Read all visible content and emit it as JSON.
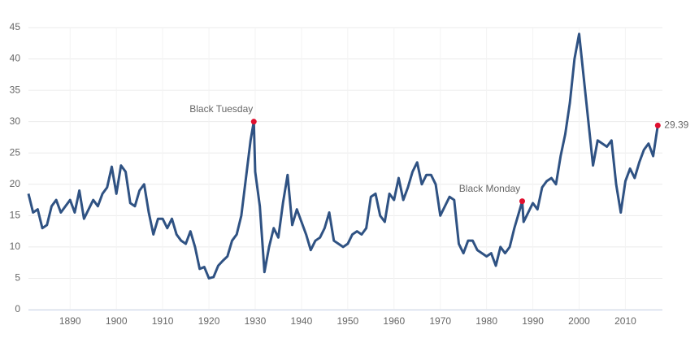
{
  "chart_data": {
    "type": "line",
    "x": [
      1881,
      1882,
      1883,
      1884,
      1885,
      1886,
      1887,
      1888,
      1889,
      1890,
      1891,
      1892,
      1893,
      1894,
      1895,
      1896,
      1897,
      1898,
      1899,
      1900,
      1901,
      1902,
      1903,
      1904,
      1905,
      1906,
      1907,
      1908,
      1909,
      1910,
      1911,
      1912,
      1913,
      1914,
      1915,
      1916,
      1917,
      1918,
      1919,
      1920,
      1921,
      1922,
      1923,
      1924,
      1925,
      1926,
      1927,
      1928,
      1929,
      1929.7,
      1930,
      1931,
      1932,
      1933,
      1934,
      1935,
      1936,
      1937,
      1938,
      1939,
      1940,
      1941,
      1942,
      1943,
      1944,
      1945,
      1946,
      1947,
      1948,
      1949,
      1950,
      1951,
      1952,
      1953,
      1954,
      1955,
      1956,
      1957,
      1958,
      1959,
      1960,
      1961,
      1962,
      1963,
      1964,
      1965,
      1966,
      1967,
      1968,
      1969,
      1970,
      1971,
      1972,
      1973,
      1974,
      1975,
      1976,
      1977,
      1978,
      1979,
      1980,
      1981,
      1982,
      1983,
      1984,
      1985,
      1986,
      1987,
      1987.7,
      1988,
      1989,
      1990,
      1991,
      1992,
      1993,
      1994,
      1995,
      1996,
      1997,
      1998,
      1999,
      2000,
      2001,
      2002,
      2003,
      2004,
      2005,
      2006,
      2007,
      2008,
      2009,
      2010,
      2011,
      2012,
      2013,
      2014,
      2015,
      2016,
      2017
    ],
    "series": [
      {
        "color": "#2f5283",
        "values": [
          18.5,
          15.5,
          16,
          13,
          13.5,
          16.5,
          17.5,
          15.5,
          16.5,
          17.5,
          15.5,
          19,
          14.5,
          16,
          17.5,
          16.5,
          18.5,
          19.5,
          22.8,
          18.5,
          23,
          22,
          17,
          16.5,
          19,
          20,
          15.5,
          12,
          14.5,
          14.5,
          13,
          14.5,
          12,
          11,
          10.5,
          12.5,
          10,
          6.5,
          6.8,
          5,
          5.2,
          7,
          7.8,
          8.5,
          11,
          12,
          15,
          21,
          27,
          30,
          22,
          16.5,
          6,
          10,
          13,
          11.5,
          17,
          21.5,
          13.5,
          16,
          14,
          12,
          9.5,
          11,
          11.5,
          13,
          15.5,
          11,
          10.5,
          10,
          10.5,
          12,
          12.5,
          12,
          13,
          18,
          18.5,
          15,
          14,
          18.5,
          17.5,
          21,
          17.5,
          19.5,
          22,
          23.5,
          20,
          21.5,
          21.5,
          20,
          15,
          16.5,
          18,
          17.5,
          10.5,
          9,
          11,
          11,
          9.5,
          9,
          8.5,
          9,
          7,
          10,
          9,
          10,
          13,
          15.5,
          17.3,
          14,
          15.5,
          17,
          16,
          19.5,
          20.5,
          21,
          20,
          24.5,
          28,
          33,
          40,
          44,
          37,
          30,
          23,
          27,
          26.5,
          26,
          27,
          20,
          15.5,
          20.5,
          22.5,
          21,
          23.5,
          25.5,
          26.5,
          24.5,
          29.39
        ]
      }
    ],
    "annotations": [
      {
        "text": "Black Tuesday",
        "x": 1929.7,
        "y": 30
      },
      {
        "text": "Black Monday",
        "x": 1987.7,
        "y": 17.3
      },
      {
        "x": 2017,
        "y": 29.39
      }
    ],
    "marker_color": "#e0102f",
    "xlim": [
      1881,
      2018
    ],
    "xticks": [
      1890,
      1900,
      1910,
      1920,
      1930,
      1940,
      1950,
      1960,
      1970,
      1980,
      1990,
      2000,
      2010
    ],
    "ylim": [
      0,
      45
    ],
    "yticks": [
      0,
      5,
      10,
      15,
      20,
      25,
      30,
      35,
      40,
      45
    ],
    "grid": true
  }
}
